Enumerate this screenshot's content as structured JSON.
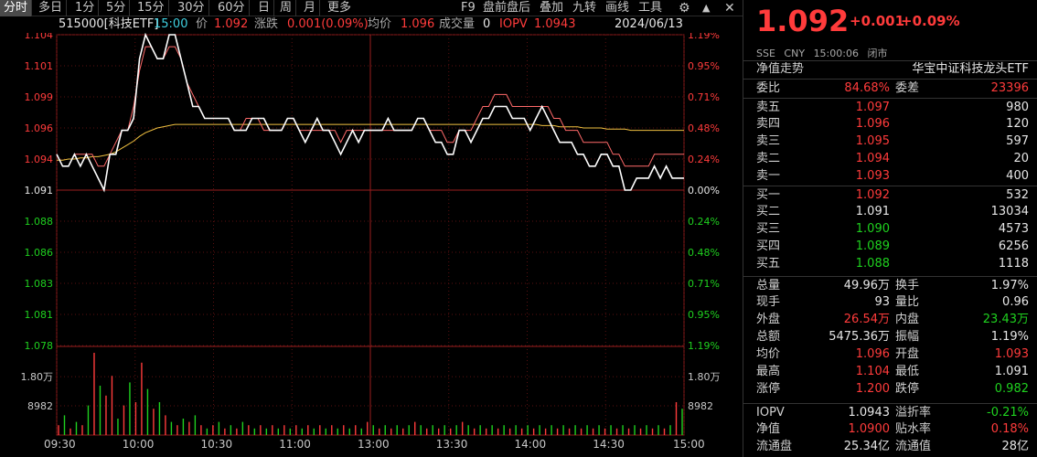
{
  "toolbar": {
    "items": [
      "分时",
      "多日",
      "1分",
      "5分",
      "15分",
      "30分",
      "60分",
      "日",
      "周",
      "月",
      "更多"
    ],
    "right_items": [
      "F9",
      "盘前盘后",
      "叠加",
      "九转",
      "画线",
      "工具"
    ],
    "settings_icon": "gear-icon",
    "up_icon": "up-caret-icon",
    "close_icon": "close-icon"
  },
  "info": {
    "symbol": "515000[科技ETF]",
    "time": "15:00",
    "price_label": "价",
    "price": "1.092",
    "change_label": "涨跌",
    "change": "0.001(0.09%)",
    "avg_label": "均价",
    "avg": "1.096",
    "volume_label": "成交量",
    "volume": "0",
    "iopv_label": "IOPV",
    "iopv": "1.0943",
    "date": "2024/06/13"
  },
  "chart_data": {
    "type": "line",
    "y_left_ticks": [
      "1.104",
      "1.101",
      "1.099",
      "1.096",
      "1.094",
      "1.091",
      "1.088",
      "1.086",
      "1.083",
      "1.081",
      "1.078"
    ],
    "y_right_ticks": [
      "1.19%",
      "0.95%",
      "0.71%",
      "0.48%",
      "0.24%",
      "0.00%",
      "0.24%",
      "0.48%",
      "0.71%",
      "0.95%",
      "1.19%"
    ],
    "vol_left_ticks": [
      "1.80万",
      "8982"
    ],
    "vol_right_ticks": [
      "1.80万",
      "8982"
    ],
    "x_ticks": [
      "09:30",
      "10:00",
      "10:30",
      "11:00",
      "13:00",
      "13:30",
      "14:00",
      "14:30",
      "15:00"
    ],
    "prev_close": 1.091,
    "ylim": [
      1.078,
      1.104
    ],
    "series": [
      {
        "name": "价",
        "color": "#ffffff",
        "values": [
          1.094,
          1.093,
          1.093,
          1.094,
          1.093,
          1.094,
          1.093,
          1.092,
          1.091,
          1.094,
          1.094,
          1.096,
          1.096,
          1.097,
          1.102,
          1.104,
          1.103,
          1.102,
          1.102,
          1.104,
          1.104,
          1.102,
          1.1,
          1.098,
          1.098,
          1.097,
          1.097,
          1.097,
          1.097,
          1.097,
          1.096,
          1.096,
          1.096,
          1.097,
          1.097,
          1.097,
          1.096,
          1.096,
          1.096,
          1.097,
          1.097,
          1.096,
          1.095,
          1.096,
          1.097,
          1.096,
          1.096,
          1.095,
          1.094,
          1.095,
          1.096,
          1.095,
          1.096,
          1.096,
          1.096,
          1.096,
          1.097,
          1.096,
          1.096,
          1.096,
          1.096,
          1.097,
          1.097,
          1.096,
          1.095,
          1.095,
          1.094,
          1.094,
          1.096,
          1.096,
          1.095,
          1.096,
          1.097,
          1.097,
          1.098,
          1.098,
          1.098,
          1.097,
          1.097,
          1.097,
          1.096,
          1.097,
          1.098,
          1.097,
          1.096,
          1.095,
          1.095,
          1.095,
          1.094,
          1.094,
          1.093,
          1.093,
          1.094,
          1.094,
          1.093,
          1.093,
          1.091,
          1.091,
          1.092,
          1.092,
          1.092,
          1.093,
          1.092,
          1.093,
          1.092,
          1.092,
          1.092
        ]
      },
      {
        "name": "IOPV",
        "color": "#ff6a6a",
        "values": [
          1.094,
          1.093,
          1.093,
          1.094,
          1.094,
          1.094,
          1.094,
          1.093,
          1.093,
          1.094,
          1.095,
          1.096,
          1.096,
          1.098,
          1.101,
          1.103,
          1.103,
          1.102,
          1.102,
          1.103,
          1.103,
          1.102,
          1.1,
          1.099,
          1.098,
          1.097,
          1.097,
          1.097,
          1.097,
          1.097,
          1.096,
          1.096,
          1.097,
          1.097,
          1.097,
          1.096,
          1.096,
          1.096,
          1.096,
          1.097,
          1.097,
          1.096,
          1.096,
          1.096,
          1.096,
          1.096,
          1.096,
          1.096,
          1.095,
          1.096,
          1.096,
          1.096,
          1.096,
          1.096,
          1.096,
          1.096,
          1.096,
          1.096,
          1.096,
          1.096,
          1.096,
          1.097,
          1.097,
          1.096,
          1.096,
          1.096,
          1.095,
          1.095,
          1.096,
          1.096,
          1.096,
          1.097,
          1.098,
          1.098,
          1.099,
          1.099,
          1.099,
          1.098,
          1.098,
          1.098,
          1.098,
          1.098,
          1.098,
          1.098,
          1.097,
          1.097,
          1.096,
          1.096,
          1.096,
          1.095,
          1.095,
          1.095,
          1.095,
          1.095,
          1.094,
          1.094,
          1.093,
          1.093,
          1.093,
          1.093,
          1.093,
          1.094,
          1.094,
          1.094,
          1.094,
          1.094,
          1.094
        ]
      },
      {
        "name": "均价",
        "color": "#f0c040",
        "values": [
          1.0935,
          1.0935,
          1.0936,
          1.0936,
          1.0937,
          1.0937,
          1.0938,
          1.0938,
          1.0939,
          1.094,
          1.0942,
          1.0945,
          1.0948,
          1.0951,
          1.0955,
          1.0958,
          1.096,
          1.0962,
          1.0963,
          1.0964,
          1.0965,
          1.0965,
          1.0965,
          1.0965,
          1.0965,
          1.0965,
          1.0965,
          1.0965,
          1.0965,
          1.0965,
          1.0965,
          1.0965,
          1.0965,
          1.0965,
          1.0965,
          1.0965,
          1.0965,
          1.0965,
          1.0965,
          1.0965,
          1.0965,
          1.0965,
          1.0965,
          1.0965,
          1.0965,
          1.0965,
          1.0965,
          1.0965,
          1.0965,
          1.0965,
          1.0965,
          1.0965,
          1.0965,
          1.0965,
          1.0965,
          1.0965,
          1.0965,
          1.0965,
          1.0965,
          1.0965,
          1.0965,
          1.0965,
          1.0965,
          1.0965,
          1.0965,
          1.0965,
          1.0965,
          1.0965,
          1.0965,
          1.0965,
          1.0965,
          1.0965,
          1.0965,
          1.0965,
          1.0965,
          1.0965,
          1.0965,
          1.0965,
          1.0965,
          1.0965,
          1.0965,
          1.0965,
          1.0964,
          1.0964,
          1.0964,
          1.0963,
          1.0963,
          1.0963,
          1.0963,
          1.0962,
          1.0962,
          1.0962,
          1.0962,
          1.0961,
          1.0961,
          1.0961,
          1.0961,
          1.096,
          1.096,
          1.096,
          1.096,
          1.096,
          1.096,
          1.096,
          1.096,
          1.096,
          1.096
        ]
      }
    ],
    "volume": [
      {
        "v": 0.3,
        "c": "r"
      },
      {
        "v": 0.6,
        "c": "g"
      },
      {
        "v": 0.2,
        "c": "r"
      },
      {
        "v": 0.4,
        "c": "g"
      },
      {
        "v": 0.3,
        "c": "r"
      },
      {
        "v": 0.9,
        "c": "g"
      },
      {
        "v": 2.5,
        "c": "r"
      },
      {
        "v": 1.5,
        "c": "g"
      },
      {
        "v": 1.2,
        "c": "r"
      },
      {
        "v": 1.8,
        "c": "r"
      },
      {
        "v": 0.5,
        "c": "g"
      },
      {
        "v": 0.9,
        "c": "r"
      },
      {
        "v": 1.6,
        "c": "g"
      },
      {
        "v": 1.0,
        "c": "r"
      },
      {
        "v": 2.2,
        "c": "r"
      },
      {
        "v": 1.4,
        "c": "g"
      },
      {
        "v": 0.8,
        "c": "r"
      },
      {
        "v": 1.0,
        "c": "g"
      },
      {
        "v": 0.6,
        "c": "r"
      },
      {
        "v": 0.4,
        "c": "g"
      },
      {
        "v": 0.3,
        "c": "r"
      },
      {
        "v": 0.5,
        "c": "g"
      },
      {
        "v": 0.4,
        "c": "r"
      },
      {
        "v": 0.6,
        "c": "g"
      },
      {
        "v": 0.3,
        "c": "r"
      },
      {
        "v": 0.2,
        "c": "g"
      },
      {
        "v": 0.3,
        "c": "r"
      },
      {
        "v": 0.4,
        "c": "g"
      },
      {
        "v": 0.2,
        "c": "r"
      },
      {
        "v": 0.3,
        "c": "g"
      },
      {
        "v": 0.2,
        "c": "r"
      },
      {
        "v": 0.4,
        "c": "g"
      },
      {
        "v": 0.3,
        "c": "r"
      },
      {
        "v": 0.2,
        "c": "g"
      },
      {
        "v": 0.3,
        "c": "r"
      },
      {
        "v": 0.2,
        "c": "g"
      },
      {
        "v": 0.3,
        "c": "r"
      },
      {
        "v": 0.2,
        "c": "g"
      },
      {
        "v": 0.3,
        "c": "r"
      },
      {
        "v": 0.2,
        "c": "g"
      },
      {
        "v": 0.3,
        "c": "r"
      },
      {
        "v": 0.2,
        "c": "g"
      },
      {
        "v": 0.3,
        "c": "r"
      },
      {
        "v": 0.2,
        "c": "g"
      },
      {
        "v": 0.3,
        "c": "r"
      },
      {
        "v": 0.2,
        "c": "g"
      },
      {
        "v": 0.3,
        "c": "r"
      },
      {
        "v": 0.2,
        "c": "g"
      },
      {
        "v": 0.3,
        "c": "r"
      },
      {
        "v": 0.2,
        "c": "g"
      },
      {
        "v": 0.3,
        "c": "r"
      },
      {
        "v": 0.2,
        "c": "g"
      },
      {
        "v": 0.4,
        "c": "r"
      },
      {
        "v": 0.3,
        "c": "g"
      },
      {
        "v": 0.2,
        "c": "r"
      },
      {
        "v": 0.3,
        "c": "g"
      },
      {
        "v": 0.2,
        "c": "r"
      },
      {
        "v": 0.3,
        "c": "g"
      },
      {
        "v": 0.2,
        "c": "r"
      },
      {
        "v": 0.3,
        "c": "g"
      },
      {
        "v": 0.4,
        "c": "r"
      },
      {
        "v": 0.3,
        "c": "g"
      },
      {
        "v": 0.2,
        "c": "r"
      },
      {
        "v": 0.3,
        "c": "g"
      },
      {
        "v": 0.2,
        "c": "r"
      },
      {
        "v": 0.3,
        "c": "g"
      },
      {
        "v": 0.2,
        "c": "r"
      },
      {
        "v": 0.3,
        "c": "g"
      },
      {
        "v": 0.4,
        "c": "r"
      },
      {
        "v": 0.3,
        "c": "g"
      },
      {
        "v": 0.2,
        "c": "r"
      },
      {
        "v": 0.3,
        "c": "g"
      },
      {
        "v": 0.2,
        "c": "r"
      },
      {
        "v": 0.3,
        "c": "g"
      },
      {
        "v": 0.2,
        "c": "r"
      },
      {
        "v": 0.3,
        "c": "g"
      },
      {
        "v": 0.2,
        "c": "r"
      },
      {
        "v": 0.3,
        "c": "g"
      },
      {
        "v": 0.2,
        "c": "r"
      },
      {
        "v": 0.3,
        "c": "g"
      },
      {
        "v": 0.2,
        "c": "r"
      },
      {
        "v": 0.3,
        "c": "g"
      },
      {
        "v": 0.2,
        "c": "r"
      },
      {
        "v": 0.3,
        "c": "g"
      },
      {
        "v": 0.2,
        "c": "r"
      },
      {
        "v": 0.3,
        "c": "g"
      },
      {
        "v": 0.2,
        "c": "r"
      },
      {
        "v": 0.3,
        "c": "g"
      },
      {
        "v": 0.2,
        "c": "r"
      },
      {
        "v": 0.3,
        "c": "g"
      },
      {
        "v": 0.2,
        "c": "r"
      },
      {
        "v": 0.3,
        "c": "g"
      },
      {
        "v": 0.2,
        "c": "r"
      },
      {
        "v": 0.3,
        "c": "g"
      },
      {
        "v": 0.2,
        "c": "r"
      },
      {
        "v": 0.3,
        "c": "g"
      },
      {
        "v": 0.2,
        "c": "r"
      },
      {
        "v": 0.3,
        "c": "g"
      },
      {
        "v": 0.2,
        "c": "r"
      },
      {
        "v": 0.3,
        "c": "g"
      },
      {
        "v": 0.2,
        "c": "r"
      },
      {
        "v": 0.3,
        "c": "g"
      },
      {
        "v": 0.2,
        "c": "r"
      },
      {
        "v": 0.3,
        "c": "g"
      },
      {
        "v": 1.0,
        "c": "r"
      },
      {
        "v": 0.8,
        "c": "g"
      }
    ],
    "vol_max": 2.5
  },
  "panel": {
    "price": "1.092",
    "chg": "+0.001",
    "pct": "+0.09%",
    "meta": [
      "SSE",
      "CNY",
      "15:00:06",
      "闭市"
    ],
    "trend_label": "净值走势",
    "fund_name": "华宝中证科技龙头ETF",
    "weibi_label": "委比",
    "weibi": "84.68%",
    "weicha_label": "委差",
    "weicha": "23396",
    "asks": [
      {
        "label": "卖五",
        "price": "1.097",
        "qty": "980"
      },
      {
        "label": "卖四",
        "price": "1.096",
        "qty": "120"
      },
      {
        "label": "卖三",
        "price": "1.095",
        "qty": "597"
      },
      {
        "label": "卖二",
        "price": "1.094",
        "qty": "20"
      },
      {
        "label": "卖一",
        "price": "1.093",
        "qty": "400"
      }
    ],
    "bids": [
      {
        "label": "买一",
        "price": "1.092",
        "qty": "532",
        "color": "red"
      },
      {
        "label": "买二",
        "price": "1.091",
        "qty": "13034",
        "color": "white"
      },
      {
        "label": "买三",
        "price": "1.090",
        "qty": "4573",
        "color": "green"
      },
      {
        "label": "买四",
        "price": "1.089",
        "qty": "6256",
        "color": "green"
      },
      {
        "label": "买五",
        "price": "1.088",
        "qty": "1118",
        "color": "green"
      }
    ],
    "stats": [
      {
        "l1": "总量",
        "v1": "49.96万",
        "c1": "white",
        "l2": "换手",
        "v2": "1.97%",
        "c2": "white"
      },
      {
        "l1": "现手",
        "v1": "93",
        "c1": "white",
        "l2": "量比",
        "v2": "0.96",
        "c2": "white"
      },
      {
        "l1": "外盘",
        "v1": "26.54万",
        "c1": "red",
        "l2": "内盘",
        "v2": "23.43万",
        "c2": "green"
      },
      {
        "l1": "总额",
        "v1": "5475.36万",
        "c1": "white",
        "l2": "振幅",
        "v2": "1.19%",
        "c2": "white"
      },
      {
        "l1": "均价",
        "v1": "1.096",
        "c1": "red",
        "l2": "开盘",
        "v2": "1.093",
        "c2": "red"
      },
      {
        "l1": "最高",
        "v1": "1.104",
        "c1": "red",
        "l2": "最低",
        "v2": "1.091",
        "c2": "white"
      },
      {
        "l1": "涨停",
        "v1": "1.200",
        "c1": "red",
        "l2": "跌停",
        "v2": "0.982",
        "c2": "green"
      }
    ],
    "stats2": [
      {
        "l1": "IOPV",
        "v1": "1.0943",
        "c1": "white",
        "l2": "溢折率",
        "v2": "-0.21%",
        "c2": "green"
      },
      {
        "l1": "净值",
        "v1": "1.0900",
        "c1": "red",
        "l2": "贴水率",
        "v2": "0.18%",
        "c2": "red"
      },
      {
        "l1": "流通盘",
        "v1": "25.34亿",
        "c1": "white",
        "l2": "流通值",
        "v2": "28亿",
        "c2": "white"
      }
    ]
  }
}
